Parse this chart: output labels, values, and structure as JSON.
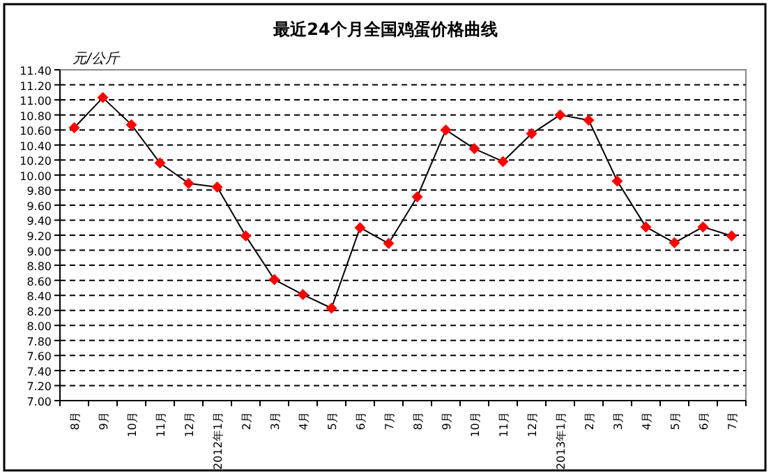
{
  "chart_data": {
    "type": "line",
    "title": "最近24个月全国鸡蛋价格曲线",
    "ylabel": "元/公斤",
    "categories": [
      "8月",
      "9月",
      "10月",
      "11月",
      "12月",
      "2012年1月",
      "2月",
      "3月",
      "4月",
      "5月",
      "6月",
      "7月",
      "8月",
      "9月",
      "10月",
      "11月",
      "12月",
      "2013年1月",
      "2月",
      "3月",
      "4月",
      "5月",
      "6月",
      "7月"
    ],
    "series": [
      {
        "color": "#ff0000",
        "values": [
          10.63,
          11.03,
          10.67,
          10.16,
          9.89,
          9.84,
          9.19,
          8.61,
          8.41,
          8.23,
          9.3,
          9.09,
          9.71,
          10.6,
          10.35,
          10.18,
          10.55,
          10.8,
          10.73,
          9.92,
          9.31,
          9.1,
          9.31,
          9.19
        ]
      }
    ],
    "ylim": [
      7.0,
      11.4
    ],
    "yticks": [
      {
        "value": 7.0,
        "label": "7.00"
      },
      {
        "value": 7.2,
        "label": "7.20"
      },
      {
        "value": 7.4,
        "label": "7.40"
      },
      {
        "value": 7.6,
        "label": "7.60"
      },
      {
        "value": 7.8,
        "label": "7.80"
      },
      {
        "value": 8.0,
        "label": "8.00"
      },
      {
        "value": 8.2,
        "label": "8.20"
      },
      {
        "value": 8.4,
        "label": "8.40"
      },
      {
        "value": 8.6,
        "label": "8.60"
      },
      {
        "value": 8.8,
        "label": "8.80"
      },
      {
        "value": 9.0,
        "label": "9.00"
      },
      {
        "value": 9.2,
        "label": "9.20"
      },
      {
        "value": 9.4,
        "label": "9.40"
      },
      {
        "value": 9.6,
        "label": "9.60"
      },
      {
        "value": 9.8,
        "label": "9.80"
      },
      {
        "value": 10.0,
        "label": "10.00"
      },
      {
        "value": 10.2,
        "label": "10.20"
      },
      {
        "value": 10.4,
        "label": "10.40"
      },
      {
        "value": 10.6,
        "label": "10.60"
      },
      {
        "value": 10.8,
        "label": "10.80"
      },
      {
        "value": 11.0,
        "label": "11.00"
      },
      {
        "value": 11.2,
        "label": "11.20"
      },
      {
        "value": 11.4,
        "label": "11.40"
      }
    ],
    "grid": "y",
    "marker": "diamond",
    "line_style": "solid"
  }
}
